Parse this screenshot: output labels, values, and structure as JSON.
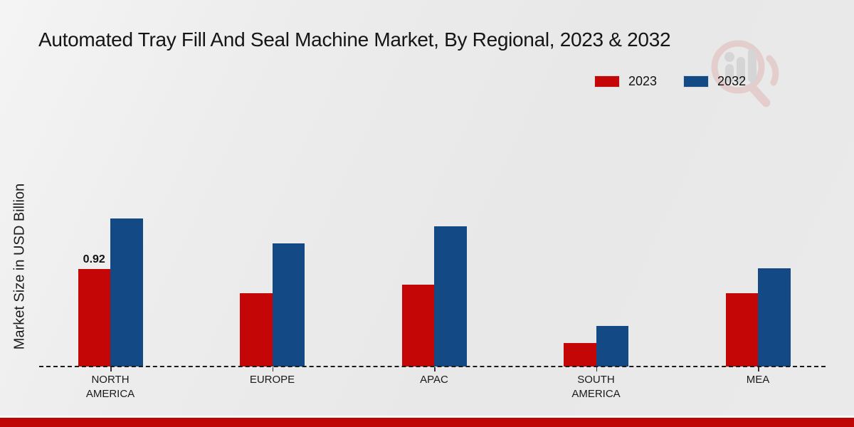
{
  "title": "Automated Tray Fill And Seal Machine Market, By Regional, 2023 & 2032",
  "ylabel": "Market Size in USD Billion",
  "colors": {
    "series_2023": "#c40606",
    "series_2032": "#134a86",
    "bottom_strip": "#c00505",
    "background": "#eaeaea",
    "baseline": "#1b1b1b",
    "watermark_red": "#dfb3b3",
    "watermark_gray": "#c3c3c3"
  },
  "legend": {
    "position": "top-right",
    "items": [
      {
        "label": "2023",
        "color": "#c40606"
      },
      {
        "label": "2032",
        "color": "#134a86"
      }
    ]
  },
  "chart_data": {
    "type": "bar",
    "title": "Automated Tray Fill And Seal Machine Market, By Regional, 2023 & 2032",
    "xlabel": "",
    "ylabel": "Market Size in USD Billion",
    "categories": [
      "NORTH AMERICA",
      "EUROPE",
      "APAC",
      "SOUTH AMERICA",
      "MEA"
    ],
    "series": [
      {
        "name": "2023",
        "color": "#c40606",
        "values": [
          0.92,
          0.69,
          0.77,
          0.22,
          0.69
        ]
      },
      {
        "name": "2032",
        "color": "#134a86",
        "values": [
          1.4,
          1.16,
          1.32,
          0.38,
          0.93
        ]
      }
    ],
    "bar_labels": [
      {
        "series_index": 0,
        "category_index": 0,
        "text": "0.92"
      }
    ],
    "ylim": [
      0,
      1.55
    ],
    "grid": false,
    "baseline_style": "dashed",
    "legend_position": "top-right"
  }
}
